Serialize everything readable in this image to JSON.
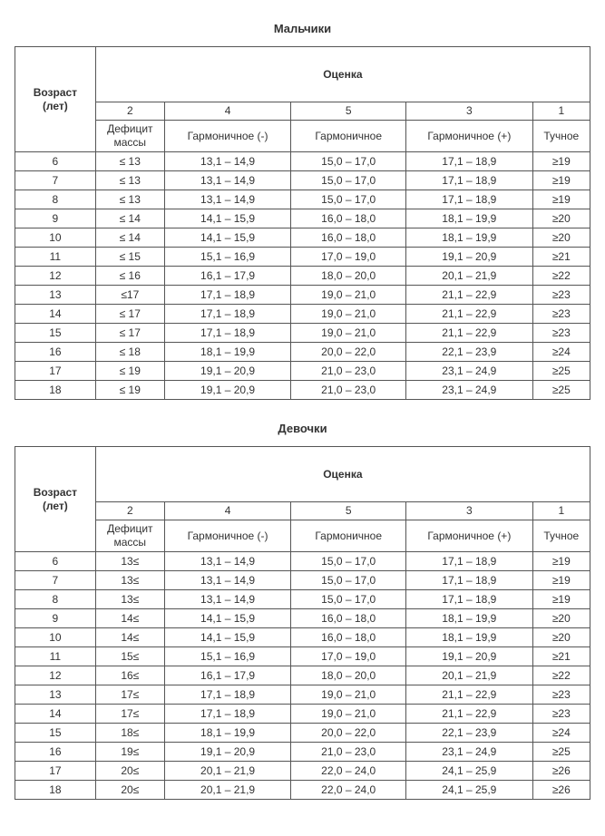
{
  "header_age": "Возраст<br>(лет)",
  "header_score": "Оценка",
  "score_numbers": [
    "2",
    "4",
    "5",
    "3",
    "1"
  ],
  "score_labels": [
    "Дефицит<br>массы",
    "Гармоничное (-)",
    "Гармоничное",
    "Гармоничное (+)",
    "Тучное"
  ],
  "boys": {
    "title": "Мальчики",
    "rows": [
      [
        "6",
        "≤ 13",
        "13,1 – 14,9",
        "15,0 – 17,0",
        "17,1 – 18,9",
        "≥19"
      ],
      [
        "7",
        "≤ 13",
        "13,1 – 14,9",
        "15,0 – 17,0",
        "17,1 – 18,9",
        "≥19"
      ],
      [
        "8",
        "≤ 13",
        "13,1 – 14,9",
        "15,0 – 17,0",
        "17,1 – 18,9",
        "≥19"
      ],
      [
        "9",
        "≤ 14",
        "14,1 – 15,9",
        "16,0 – 18,0",
        "18,1 – 19,9",
        "≥20"
      ],
      [
        "10",
        "≤ 14",
        "14,1 – 15,9",
        "16,0 – 18,0",
        "18,1 – 19,9",
        "≥20"
      ],
      [
        "11",
        "≤ 15",
        "15,1 – 16,9",
        "17,0 – 19,0",
        "19,1 – 20,9",
        "≥21"
      ],
      [
        "12",
        "≤ 16",
        "16,1 – 17,9",
        "18,0 – 20,0",
        "20,1 – 21,9",
        "≥22"
      ],
      [
        "13",
        "≤17",
        "17,1 – 18,9",
        "19,0 – 21,0",
        "21,1 – 22,9",
        "≥23"
      ],
      [
        "14",
        "≤ 17",
        "17,1 – 18,9",
        "19,0 – 21,0",
        "21,1 – 22,9",
        "≥23"
      ],
      [
        "15",
        "≤ 17",
        "17,1 – 18,9",
        "19,0 – 21,0",
        "21,1 – 22,9",
        "≥23"
      ],
      [
        "16",
        "≤ 18",
        "18,1 – 19,9",
        "20,0 – 22,0",
        "22,1 – 23,9",
        "≥24"
      ],
      [
        "17",
        "≤ 19",
        "19,1 – 20,9",
        "21,0 – 23,0",
        "23,1 – 24,9",
        "≥25"
      ],
      [
        "18",
        "≤ 19",
        "19,1 – 20,9",
        "21,0 – 23,0",
        "23,1 – 24,9",
        "≥25"
      ]
    ]
  },
  "girls": {
    "title": "Девочки",
    "rows": [
      [
        "6",
        "13≤",
        "13,1 – 14,9",
        "15,0 – 17,0",
        "17,1 – 18,9",
        "≥19"
      ],
      [
        "7",
        "13≤",
        "13,1 – 14,9",
        "15,0 – 17,0",
        "17,1 – 18,9",
        "≥19"
      ],
      [
        "8",
        "13≤",
        "13,1 – 14,9",
        "15,0 – 17,0",
        "17,1 – 18,9",
        "≥19"
      ],
      [
        "9",
        "14≤",
        "14,1 – 15,9",
        "16,0 – 18,0",
        "18,1 – 19,9",
        "≥20"
      ],
      [
        "10",
        "14≤",
        "14,1 – 15,9",
        "16,0 – 18,0",
        "18,1 – 19,9",
        "≥20"
      ],
      [
        "11",
        "15≤",
        "15,1 – 16,9",
        "17,0 – 19,0",
        "19,1 – 20,9",
        "≥21"
      ],
      [
        "12",
        "16≤",
        "16,1 – 17,9",
        "18,0 – 20,0",
        "20,1 – 21,9",
        "≥22"
      ],
      [
        "13",
        "17≤",
        "17,1 – 18,9",
        "19,0 – 21,0",
        "21,1 – 22,9",
        "≥23"
      ],
      [
        "14",
        "17≤",
        "17,1 – 18,9",
        "19,0 – 21,0",
        "21,1 – 22,9",
        "≥23"
      ],
      [
        "15",
        "18≤",
        "18,1 – 19,9",
        "20,0 – 22,0",
        "22,1 – 23,9",
        "≥24"
      ],
      [
        "16",
        "19≤",
        "19,1 – 20,9",
        "21,0 – 23,0",
        "23,1 – 24,9",
        "≥25"
      ],
      [
        "17",
        "20≤",
        "20,1 – 21,9",
        "22,0 – 24,0",
        "24,1 – 25,9",
        "≥26"
      ],
      [
        "18",
        "20≤",
        "20,1 – 21,9",
        "22,0 – 24,0",
        "24,1 – 25,9",
        "≥26"
      ]
    ]
  }
}
